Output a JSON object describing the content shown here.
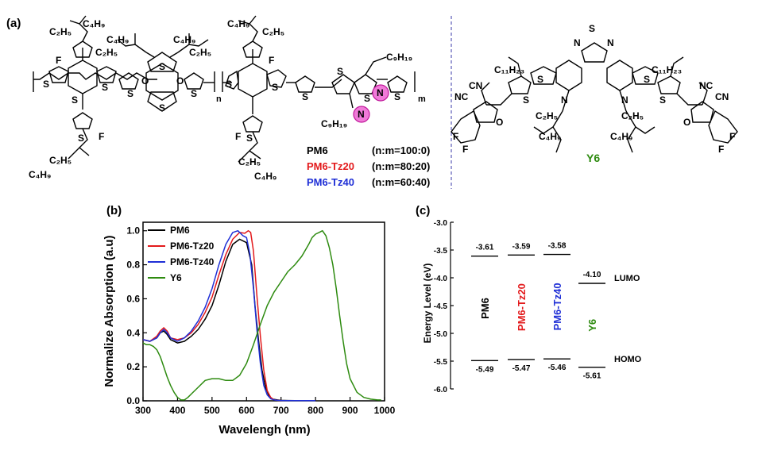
{
  "panels": {
    "a": "(a)",
    "b": "(b)",
    "c": "(c)"
  },
  "structures": {
    "labels": [
      {
        "name": "PM6",
        "ratio": "(n:m=100:0)",
        "color": "#000000"
      },
      {
        "name": "PM6-Tz20",
        "ratio": "(n:m=80:20)",
        "color": "#e31a1c"
      },
      {
        "name": "PM6-Tz40",
        "ratio": "(n:m=60:40)",
        "color": "#1f2fd6"
      }
    ],
    "y6_label": "Y6",
    "y6_color": "#2e8b10",
    "atoms": {
      "S": "S",
      "F": "F",
      "N": "N",
      "O": "O",
      "NC": "NC",
      "CN": "CN",
      "n": "n",
      "m": "m",
      "C2H5": "C₂H₅",
      "C4H9": "C₄H₉",
      "C9H19": "C₉H₁₉",
      "C11H23": "C₁₁H₂₃"
    }
  },
  "chart_data": [
    {
      "type": "line",
      "title": "",
      "xlabel": "Wavelengh (nm)",
      "ylabel": "Normalize Absorption (a.u)",
      "xlim": [
        300,
        1000
      ],
      "ylim": [
        0.0,
        1.05
      ],
      "xticks": [
        300,
        400,
        500,
        600,
        700,
        800,
        900,
        1000
      ],
      "yticks": [
        0.0,
        0.2,
        0.4,
        0.6,
        0.8,
        1.0
      ],
      "legend_position": "top-left",
      "series": [
        {
          "name": "PM6",
          "color": "#000000",
          "x": [
            300,
            320,
            340,
            350,
            360,
            370,
            380,
            400,
            420,
            440,
            460,
            480,
            500,
            520,
            540,
            560,
            580,
            600,
            615,
            625,
            635,
            645,
            655,
            665,
            675,
            690,
            700,
            720,
            740,
            760,
            780,
            800
          ],
          "y": [
            0.36,
            0.35,
            0.37,
            0.4,
            0.41,
            0.39,
            0.36,
            0.34,
            0.35,
            0.38,
            0.42,
            0.48,
            0.56,
            0.68,
            0.82,
            0.92,
            0.95,
            0.93,
            0.8,
            0.55,
            0.35,
            0.18,
            0.08,
            0.03,
            0.01,
            0.005,
            0.003,
            0.002,
            0.001,
            0.001,
            0.001,
            0.001
          ]
        },
        {
          "name": "PM6-Tz20",
          "color": "#e31a1c",
          "x": [
            300,
            320,
            340,
            350,
            360,
            370,
            380,
            400,
            420,
            440,
            460,
            480,
            500,
            520,
            540,
            560,
            580,
            595,
            605,
            612,
            620,
            630,
            640,
            650,
            660,
            670,
            680,
            690,
            700,
            720,
            740,
            760,
            780,
            800
          ],
          "y": [
            0.36,
            0.35,
            0.38,
            0.41,
            0.43,
            0.41,
            0.37,
            0.36,
            0.37,
            0.4,
            0.45,
            0.52,
            0.61,
            0.74,
            0.86,
            0.95,
            0.99,
            0.985,
            1.0,
            0.99,
            0.88,
            0.62,
            0.38,
            0.18,
            0.06,
            0.02,
            0.006,
            0.003,
            0.002,
            0.001,
            0.001,
            0.001,
            0.001,
            0.001
          ]
        },
        {
          "name": "PM6-Tz40",
          "color": "#1f2fd6",
          "x": [
            300,
            320,
            340,
            350,
            360,
            370,
            380,
            400,
            420,
            440,
            460,
            480,
            500,
            520,
            540,
            560,
            575,
            590,
            600,
            610,
            620,
            630,
            640,
            650,
            660,
            670,
            680,
            690,
            700,
            720,
            740,
            760,
            780,
            800
          ],
          "y": [
            0.36,
            0.35,
            0.37,
            0.4,
            0.42,
            0.4,
            0.37,
            0.35,
            0.37,
            0.41,
            0.47,
            0.55,
            0.66,
            0.8,
            0.92,
            0.99,
            1.0,
            0.97,
            0.96,
            0.86,
            0.66,
            0.42,
            0.22,
            0.09,
            0.035,
            0.012,
            0.005,
            0.003,
            0.002,
            0.001,
            0.001,
            0.001,
            0.001,
            0.001
          ]
        },
        {
          "name": "Y6",
          "color": "#2e8b10",
          "x": [
            300,
            310,
            320,
            330,
            340,
            350,
            360,
            370,
            380,
            390,
            400,
            410,
            420,
            430,
            440,
            460,
            480,
            500,
            520,
            540,
            560,
            580,
            600,
            620,
            640,
            660,
            680,
            700,
            720,
            740,
            760,
            780,
            790,
            800,
            810,
            820,
            830,
            840,
            850,
            860,
            870,
            880,
            890,
            900,
            920,
            940,
            960,
            980,
            990
          ],
          "y": [
            0.34,
            0.33,
            0.33,
            0.32,
            0.3,
            0.26,
            0.2,
            0.14,
            0.09,
            0.05,
            0.02,
            0.005,
            0.005,
            0.02,
            0.04,
            0.08,
            0.12,
            0.13,
            0.13,
            0.12,
            0.12,
            0.15,
            0.22,
            0.33,
            0.45,
            0.56,
            0.64,
            0.7,
            0.76,
            0.8,
            0.85,
            0.92,
            0.96,
            0.98,
            0.99,
            1.0,
            0.97,
            0.9,
            0.8,
            0.66,
            0.5,
            0.35,
            0.22,
            0.13,
            0.05,
            0.02,
            0.01,
            0.005,
            0.005
          ]
        }
      ]
    },
    {
      "type": "energy-level",
      "title": "",
      "xlabel": "",
      "ylabel": "Energy Level  (eV)",
      "ylim": [
        -6.0,
        -3.0
      ],
      "yticks": [
        -3.0,
        -3.5,
        -4.0,
        -4.5,
        -5.0,
        -5.5,
        -6.0
      ],
      "ytick_labels": [
        "-3.0",
        "-3.5",
        "-4.0",
        "-4.5",
        "-5.0",
        "-5.5",
        "-6.0"
      ],
      "level_labels": {
        "lumo": "LUMO",
        "homo": "HOMO"
      },
      "materials": [
        {
          "name": "PM6",
          "color": "#000000",
          "lumo": -3.61,
          "homo": -5.49,
          "lumo_label": "-3.61",
          "homo_label": "-5.49"
        },
        {
          "name": "PM6-Tz20",
          "color": "#e31a1c",
          "lumo": -3.59,
          "homo": -5.47,
          "lumo_label": "-3.59",
          "homo_label": "-5.47"
        },
        {
          "name": "PM6-Tz40",
          "color": "#1f2fd6",
          "lumo": -3.58,
          "homo": -5.46,
          "lumo_label": "-3.58",
          "homo_label": "-5.46"
        },
        {
          "name": "Y6",
          "color": "#2e8b10",
          "lumo": -4.1,
          "homo": -5.61,
          "lumo_label": "-4.10",
          "homo_label": "-5.61"
        }
      ]
    }
  ]
}
